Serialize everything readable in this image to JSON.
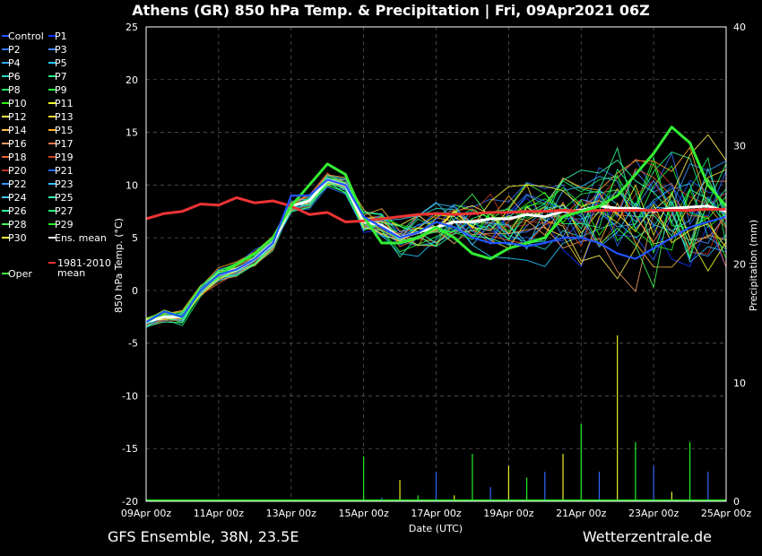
{
  "chart_data": {
    "type": "line",
    "title": "Athens  (GR)  850 hPa Temp. & Precipitation | Fri, 09Apr2021 06Z",
    "ylabel": "850 hPa Temp. (°C)",
    "y2label": "Precipitation (mm)",
    "xlabel": "Date (UTC)",
    "ylim": [
      -20,
      25
    ],
    "y2lim": [
      0,
      40
    ],
    "yticks": [
      "25",
      "20",
      "15",
      "10",
      "5",
      "0",
      "-5",
      "-10",
      "-15",
      "-20"
    ],
    "y2ticks": [
      "40",
      "30",
      "20",
      "10",
      "0"
    ],
    "xticks": [
      "09Apr2021 00z",
      "11Apr 00z",
      "13Apr 00z",
      "15Apr 00z",
      "17Apr 00z",
      "19Apr 00z",
      "21Apr 00z",
      "23Apr 00z",
      "25Apr 00z"
    ],
    "xtick_labels": [
      "09Apr 00z",
      "11Apr 00z",
      "13Apr 00z",
      "15Apr 00z",
      "17Apr 00z",
      "19Apr 00z",
      "21Apr 00z",
      "23Apr 00z",
      "25Apr 00z"
    ],
    "grid": true,
    "legend_position": "left",
    "legend": [
      {
        "label": "Control",
        "color": "#2255ff"
      },
      {
        "label": "P1",
        "color": "#1133ff"
      },
      {
        "label": "P2",
        "color": "#3377ff"
      },
      {
        "label": "P3",
        "color": "#4488ff"
      },
      {
        "label": "P4",
        "color": "#33aaff"
      },
      {
        "label": "P5",
        "color": "#22ccff"
      },
      {
        "label": "P6",
        "color": "#22ddcc"
      },
      {
        "label": "P7",
        "color": "#22ee88"
      },
      {
        "label": "P8",
        "color": "#22ee66"
      },
      {
        "label": "P9",
        "color": "#22ff44"
      },
      {
        "label": "P10",
        "color": "#33ff11"
      },
      {
        "label": "P11",
        "color": "#eeff22"
      },
      {
        "label": "P12",
        "color": "#ffee55"
      },
      {
        "label": "P13",
        "color": "#ffdd33"
      },
      {
        "label": "P14",
        "color": "#ffbb44"
      },
      {
        "label": "P15",
        "color": "#ffaa22"
      },
      {
        "label": "P16",
        "color": "#ee9966"
      },
      {
        "label": "P17",
        "color": "#ee7744"
      },
      {
        "label": "P18",
        "color": "#ee6633"
      },
      {
        "label": "P19",
        "color": "#cc4422"
      },
      {
        "label": "P20",
        "color": "#bb3322"
      },
      {
        "label": "P21",
        "color": "#2266ff"
      },
      {
        "label": "P22",
        "color": "#3399ff"
      },
      {
        "label": "P23",
        "color": "#33bbff"
      },
      {
        "label": "P24",
        "color": "#44ccff"
      },
      {
        "label": "P25",
        "color": "#33ffaa"
      },
      {
        "label": "P26",
        "color": "#33ff99"
      },
      {
        "label": "P27",
        "color": "#22ff77"
      },
      {
        "label": "P28",
        "color": "#44ff55"
      },
      {
        "label": "P29",
        "color": "#22ee22"
      },
      {
        "label": "P30",
        "color": "#ffff33"
      },
      {
        "label": "Ens. mean",
        "color": "#ffffff"
      },
      {
        "label": "1981-2010\nmean",
        "color": "#ee3333"
      },
      {
        "label": "Oper",
        "color": "#44ff44"
      }
    ],
    "series": [
      {
        "name": "Ens. mean",
        "color": "#ffffff",
        "x": [
          0,
          0.5,
          1,
          1.5,
          2,
          2.5,
          3,
          3.5,
          4,
          4.5,
          5,
          5.5,
          6,
          6.5,
          7,
          7.5,
          8,
          8.5,
          9,
          9.5,
          10,
          10.5,
          11,
          11.5,
          12,
          12.5,
          13,
          13.5,
          14,
          14.5,
          15,
          15.5,
          16
        ],
        "values": [
          -3,
          -2.5,
          -2.5,
          0,
          1.5,
          2,
          3,
          4.5,
          8,
          8.5,
          10.5,
          10,
          6.5,
          6.2,
          5,
          5.5,
          6,
          6.5,
          6.5,
          6.8,
          6.8,
          7.2,
          7,
          7.5,
          7.6,
          8,
          7.8,
          7.8,
          7.5,
          7.8,
          7.9,
          8,
          7.5
        ]
      },
      {
        "name": "1981-2010 mean",
        "color": "#ee3333",
        "x": [
          0,
          0.5,
          1,
          1.5,
          2,
          2.5,
          3,
          3.5,
          4,
          4.5,
          5,
          5.5,
          6,
          6.5,
          7,
          7.5,
          8,
          8.5,
          9,
          9.5,
          10,
          10.5,
          11,
          11.5,
          12,
          12.5,
          13,
          13.5,
          14,
          14.5,
          15,
          15.5,
          16
        ],
        "values": [
          6.8,
          7.3,
          7.5,
          8.2,
          8.1,
          8.8,
          8.3,
          8.5,
          8,
          7.2,
          7.4,
          6.5,
          6.6,
          6.8,
          7,
          7.2,
          7.3,
          7.2,
          7.3,
          7.4,
          7.4,
          7.5,
          7.5,
          7.6,
          7.5,
          7.6,
          7.6,
          7.6,
          7.6,
          7.6,
          7.6,
          7.7,
          7.7
        ]
      },
      {
        "name": "Oper",
        "color": "#33ee33",
        "x": [
          0,
          0.5,
          1,
          1.5,
          2,
          2.5,
          3,
          3.5,
          4,
          4.5,
          5,
          5.5,
          6,
          6.5,
          7,
          7.5,
          8,
          8.5,
          9,
          9.5,
          10,
          10.5,
          11,
          11.5,
          12,
          12.5,
          13,
          13.5,
          14,
          14.5,
          15,
          15.5,
          16
        ],
        "values": [
          -3,
          -2,
          -2.5,
          0,
          1.5,
          2.5,
          3.5,
          5,
          8,
          10,
          12,
          11,
          7,
          4.5,
          4.5,
          5,
          6,
          5,
          3.5,
          3,
          4,
          4.5,
          5,
          7,
          7.5,
          8,
          9,
          11,
          13,
          15.5,
          14,
          10,
          8
        ]
      },
      {
        "name": "Control",
        "color": "#2255ff",
        "x": [
          0,
          0.5,
          1,
          1.5,
          2,
          2.5,
          3,
          3.5,
          4,
          4.5,
          5,
          5.5,
          6,
          6.5,
          7,
          7.5,
          8,
          8.5,
          9,
          9.5,
          10,
          10.5,
          11,
          11.5,
          12,
          12.5,
          13,
          13.5,
          14,
          14.5,
          15,
          15.5,
          16
        ],
        "values": [
          -3,
          -2,
          -2.5,
          0,
          1.5,
          2,
          3,
          4.5,
          9,
          9,
          10.5,
          10,
          7,
          6,
          5,
          5.5,
          6.5,
          6,
          5,
          4.5,
          4.5,
          4.2,
          4.5,
          5,
          5,
          4.5,
          3.5,
          3,
          4,
          5,
          6,
          6.5,
          7
        ]
      }
    ],
    "precipitation_mm": {
      "x": [
        6,
        6.5,
        7,
        7.5,
        8,
        8.5,
        9,
        9.5,
        10,
        10.5,
        11,
        11.5,
        12,
        12.5,
        13,
        13.5,
        14,
        14.5,
        15,
        15.5
      ],
      "max": [
        3.8,
        0.3,
        1.8,
        0.5,
        2.5,
        0.5,
        4,
        1.2,
        3,
        2,
        2.5,
        4,
        6.5,
        2.5,
        14,
        5,
        3,
        0.8,
        5,
        2.5
      ]
    }
  },
  "footer": {
    "left": "GFS Ensemble, 38N, 23.5E",
    "right": "Wetterzentrale.de"
  }
}
